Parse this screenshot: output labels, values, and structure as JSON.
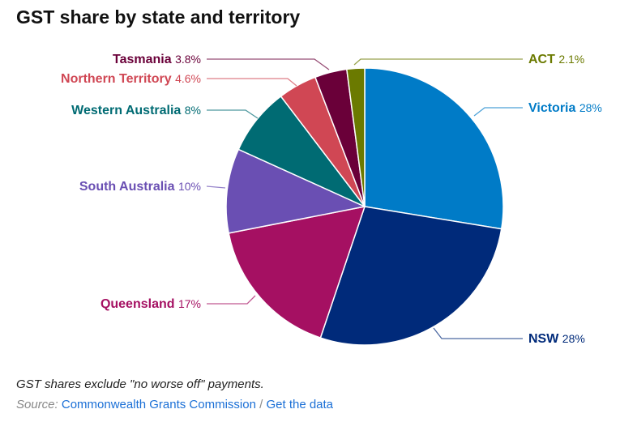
{
  "title": "GST share by state and territory",
  "note": "GST shares exclude \"no worse off\" payments.",
  "source": {
    "label": "Source:",
    "link": "Commonwealth Grants Commission",
    "sep": "/",
    "data_link": "Get the data"
  },
  "chart_data": {
    "type": "pie",
    "title": "GST share by state and territory",
    "slices": [
      {
        "name": "Victoria",
        "value": 28,
        "label": "28%",
        "color": "#007bc7"
      },
      {
        "name": "NSW",
        "value": 28,
        "label": "28%",
        "color": "#002a7a"
      },
      {
        "name": "Queensland",
        "value": 17,
        "label": "17%",
        "color": "#a51062"
      },
      {
        "name": "South Australia",
        "value": 10,
        "label": "10%",
        "color": "#6a4fb3"
      },
      {
        "name": "Western Australia",
        "value": 8,
        "label": "8%",
        "color": "#006b73"
      },
      {
        "name": "Northern Territory",
        "value": 4.6,
        "label": "4.6%",
        "color": "#d04754"
      },
      {
        "name": "Tasmania",
        "value": 3.8,
        "label": "3.8%",
        "color": "#6a0039"
      },
      {
        "name": "ACT",
        "value": 2.1,
        "label": "2.1%",
        "color": "#6b7a00"
      }
    ]
  }
}
